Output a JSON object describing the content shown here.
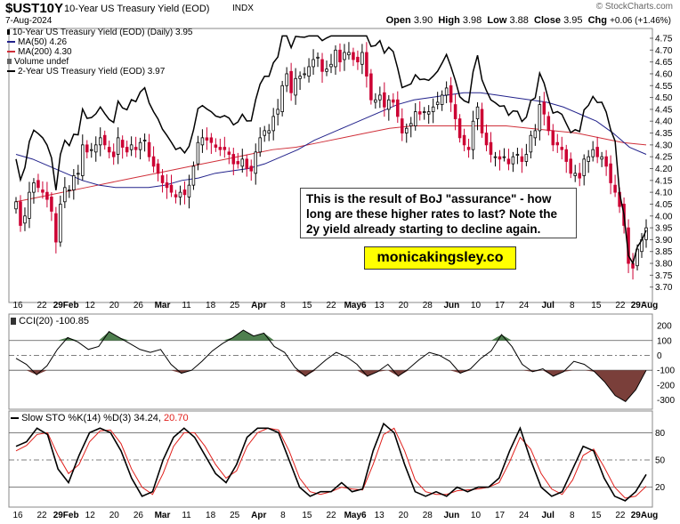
{
  "header": {
    "symbol": "$UST10Y",
    "description": "10-Year US Treasury Yield (EOD)",
    "index": "INDX",
    "date": "7-Aug-2024",
    "credit": "© StockCharts.com",
    "open_label": "Open",
    "open": "3.90",
    "high_label": "High",
    "high": "3.98",
    "low_label": "Low",
    "low": "3.88",
    "close_label": "Close",
    "close": "3.95",
    "chg_label": "Chg",
    "chg": "+0.06 (+1.46%)"
  },
  "legend": {
    "price": "10-Year US Treasury Yield (EOD) (Daily) 3.95",
    "ma50": "MA(50) 4.26",
    "ma200": "MA(200) 4.30",
    "volume": "Volume undef",
    "two_year": "2-Year US Treasury Yield (EOD) 3.97"
  },
  "annotation": "This is the result of BoJ \"assurance\" - how long are these higher rates to last? Note the 2y yield already starting to decline again.",
  "brand": "monicakingsley.co",
  "cci_label": "CCI(20) -100.85",
  "sto_label_prefix": "Slow STO %K(14) %D(3) 34.24,",
  "sto_d_value": "20.70",
  "colors": {
    "up_candle": "#000000",
    "down_candle": "#cc0033",
    "ma50": "#22228b",
    "ma200": "#d0303a",
    "two_year": "#000000",
    "cci_pos": "#4f7f4f",
    "cci_neg": "#7a3f3a",
    "sto_d": "#e0201c"
  },
  "chart_data": [
    {
      "type": "candlestick",
      "title": "10-Year US Treasury Yield (EOD) (Daily)",
      "ylim": [
        3.65,
        4.78
      ],
      "y_ticks": [
        3.7,
        3.75,
        3.8,
        3.85,
        3.9,
        3.95,
        4.0,
        4.05,
        4.1,
        4.15,
        4.2,
        4.25,
        4.3,
        4.35,
        4.4,
        4.45,
        4.5,
        4.55,
        4.6,
        4.65,
        4.7,
        4.75
      ],
      "x_ticks": [
        "16",
        "22",
        "29Feb",
        "12",
        "20",
        "26",
        "Mar",
        "11",
        "18",
        "25",
        "Apr",
        "8",
        "15",
        "22",
        "May6",
        "13",
        "20",
        "28",
        "Jun",
        "10",
        "17",
        "24",
        "Jul",
        "8",
        "15",
        "22",
        "29Aug"
      ],
      "closes": [
        4.06,
        3.96,
        4.0,
        4.1,
        4.14,
        4.12,
        4.1,
        4.07,
        4.02,
        3.89,
        4.05,
        4.12,
        4.11,
        4.17,
        4.18,
        4.3,
        4.27,
        4.28,
        4.3,
        4.33,
        4.3,
        4.27,
        4.25,
        4.33,
        4.29,
        4.27,
        4.3,
        4.28,
        4.31,
        4.32,
        4.25,
        4.21,
        4.18,
        4.14,
        4.12,
        4.1,
        4.08,
        4.1,
        4.09,
        4.13,
        4.21,
        4.31,
        4.33,
        4.32,
        4.31,
        4.29,
        4.28,
        4.28,
        4.26,
        4.22,
        4.22,
        4.24,
        4.2,
        4.19,
        4.27,
        4.33,
        4.36,
        4.36,
        4.42,
        4.45,
        4.55,
        4.6,
        4.52,
        4.58,
        4.59,
        4.6,
        4.63,
        4.66,
        4.67,
        4.61,
        4.62,
        4.64,
        4.7,
        4.65,
        4.69,
        4.69,
        4.66,
        4.65,
        4.69,
        4.59,
        4.49,
        4.49,
        4.51,
        4.46,
        4.49,
        4.48,
        4.42,
        4.35,
        4.37,
        4.39,
        4.44,
        4.43,
        4.44,
        4.44,
        4.46,
        4.48,
        4.51,
        4.54,
        4.48,
        4.41,
        4.33,
        4.3,
        4.28,
        4.4,
        4.46,
        4.35,
        4.3,
        4.26,
        4.25,
        4.24,
        4.25,
        4.22,
        4.25,
        4.26,
        4.23,
        4.26,
        4.34,
        4.36,
        4.47,
        4.43,
        4.36,
        4.3,
        4.3,
        4.28,
        4.23,
        4.18,
        4.18,
        4.16,
        4.24,
        4.25,
        4.28,
        4.25,
        4.25,
        4.21,
        4.14,
        4.1,
        4.04,
        3.96,
        3.8,
        3.78,
        3.86,
        3.9,
        3.95
      ],
      "series": [
        {
          "name": "10-Year US Treasury Yield (EOD)",
          "last": 3.95
        },
        {
          "name": "MA(50)",
          "last": 4.26,
          "values": [
            4.26,
            4.24,
            4.21,
            4.18,
            4.15,
            4.13,
            4.12,
            4.12,
            4.12,
            4.13,
            4.15,
            4.16,
            4.18,
            4.19,
            4.2,
            4.22,
            4.25,
            4.28,
            4.32,
            4.35,
            4.38,
            4.41,
            4.44,
            4.47,
            4.49,
            4.5,
            4.51,
            4.52,
            4.52,
            4.51,
            4.5,
            4.49,
            4.48,
            4.46,
            4.43,
            4.4,
            4.35,
            4.29,
            4.26
          ]
        },
        {
          "name": "MA(200)",
          "last": 4.3,
          "values": [
            4.06,
            4.08,
            4.1,
            4.12,
            4.14,
            4.16,
            4.18,
            4.2,
            4.22,
            4.24,
            4.26,
            4.28,
            4.29,
            4.31,
            4.33,
            4.35,
            4.37,
            4.38,
            4.38,
            4.38,
            4.38,
            4.38,
            4.37,
            4.36,
            4.35,
            4.33,
            4.31,
            4.3
          ]
        },
        {
          "name": "2-Year US Treasury Yield (EOD)",
          "last": 3.97
        }
      ]
    },
    {
      "type": "area",
      "title": "CCI(20)",
      "last": -100.85,
      "ylim": [
        -350,
        260
      ],
      "y_ticks": [
        200,
        100,
        0,
        -100,
        -200,
        -300
      ],
      "values": [
        -20,
        -60,
        -130,
        -70,
        40,
        120,
        90,
        40,
        60,
        160,
        120,
        80,
        40,
        20,
        40,
        -60,
        -120,
        -100,
        -40,
        30,
        80,
        120,
        170,
        130,
        150,
        60,
        20,
        -80,
        -140,
        -90,
        -30,
        20,
        -10,
        -60,
        -140,
        -110,
        -60,
        -140,
        -90,
        -30,
        20,
        0,
        -40,
        -120,
        -90,
        -20,
        30,
        140,
        60,
        -60,
        -110,
        -90,
        -140,
        -110,
        -40,
        -60,
        -110,
        -180,
        -270,
        -310,
        -230,
        -100
      ]
    },
    {
      "type": "line",
      "title": "Slow STO %K(14) %D(3)",
      "k_last": 34.24,
      "d_last": 20.7,
      "ylim": [
        0,
        100
      ],
      "y_ticks": [
        80,
        50,
        20
      ],
      "series": [
        {
          "name": "%K(14)",
          "values": [
            65,
            70,
            85,
            78,
            40,
            25,
            55,
            80,
            85,
            80,
            60,
            30,
            10,
            15,
            50,
            75,
            85,
            75,
            55,
            35,
            25,
            45,
            75,
            85,
            85,
            80,
            50,
            20,
            10,
            15,
            15,
            25,
            15,
            18,
            60,
            90,
            80,
            45,
            15,
            10,
            15,
            10,
            20,
            15,
            20,
            20,
            30,
            60,
            85,
            50,
            20,
            10,
            15,
            40,
            65,
            60,
            30,
            10,
            5,
            15,
            34
          ]
        },
        {
          "name": "%D(3)",
          "values": [
            60,
            66,
            78,
            80,
            55,
            35,
            45,
            70,
            82,
            83,
            68,
            40,
            20,
            12,
            35,
            65,
            80,
            80,
            65,
            45,
            30,
            38,
            65,
            80,
            85,
            83,
            60,
            30,
            15,
            12,
            15,
            20,
            18,
            17,
            45,
            78,
            85,
            60,
            28,
            15,
            12,
            12,
            16,
            17,
            18,
            20,
            25,
            48,
            75,
            62,
            35,
            18,
            12,
            28,
            55,
            62,
            42,
            20,
            8,
            10,
            21
          ]
        }
      ]
    }
  ]
}
